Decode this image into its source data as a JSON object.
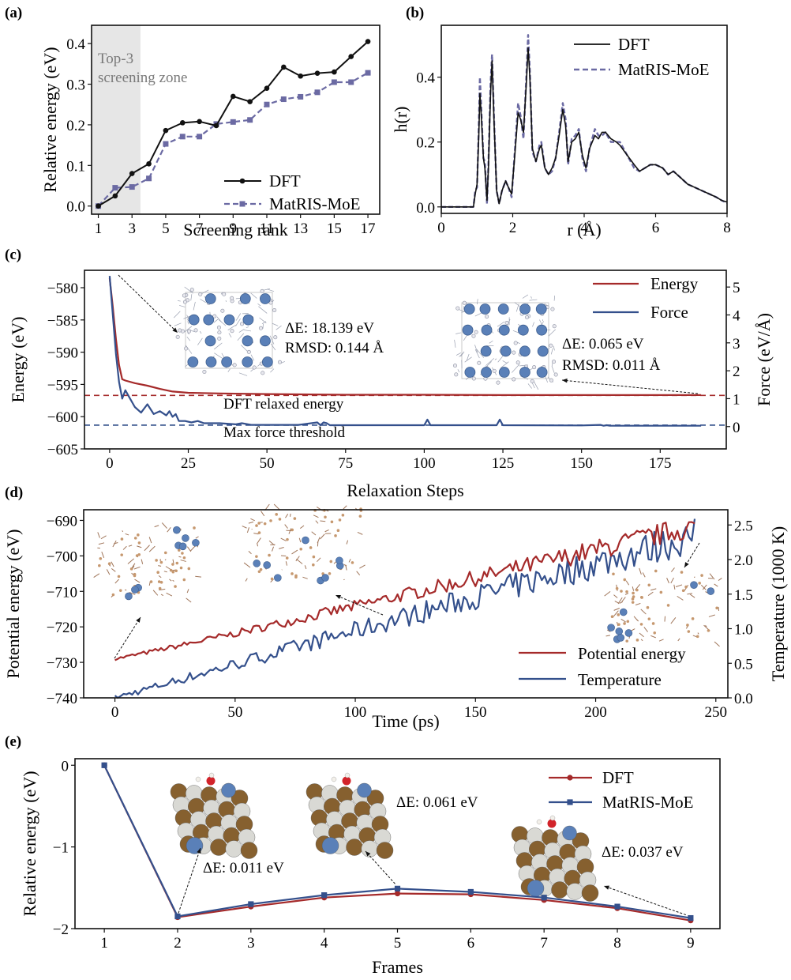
{
  "figure": {
    "panels": [
      "(a)",
      "(b)",
      "(c)",
      "(d)",
      "(e)"
    ]
  },
  "colors": {
    "dft_black": "#111111",
    "matris_purple": "#6b6aa3",
    "energy_red": "#a52a2a",
    "force_blue": "#34508c",
    "zone_gray": "#e6e6e6",
    "atom_blue": "#5a80b8",
    "atom_brown": "#86602f",
    "atom_white": "#d9d9d4",
    "atom_red": "#d2232a"
  },
  "chart_data": [
    {
      "id": "a",
      "type": "line",
      "label": "(a)",
      "title": "",
      "xlabel": "Screening rank",
      "ylabel": "Relative energy (eV)",
      "xlim": [
        0.6,
        17.7
      ],
      "ylim": [
        -0.02,
        0.445
      ],
      "xticks": [
        1,
        3,
        5,
        7,
        9,
        11,
        13,
        15,
        17
      ],
      "yticks": [
        0.0,
        0.1,
        0.2,
        0.3,
        0.4
      ],
      "ytick_labels": [
        "0.0",
        "0.1",
        "0.2",
        "0.3",
        "0.4"
      ],
      "grid": false,
      "legend_position": "lower-right",
      "shaded_region": {
        "x0": 0.6,
        "x1": 3.5,
        "label_lines": [
          "Top-3",
          "screening zone"
        ]
      },
      "x": [
        1,
        2,
        3,
        4,
        5,
        6,
        7,
        8,
        9,
        10,
        11,
        12,
        13,
        14,
        15,
        16,
        17
      ],
      "series": [
        {
          "name": "DFT",
          "style": "solid-circle",
          "values": [
            0.0,
            0.025,
            0.08,
            0.104,
            0.186,
            0.205,
            0.208,
            0.198,
            0.27,
            0.257,
            0.29,
            0.342,
            0.32,
            0.327,
            0.33,
            0.368,
            0.405
          ]
        },
        {
          "name": "MatRIS-MoE",
          "style": "dashed-square",
          "values": [
            0.0,
            0.045,
            0.047,
            0.068,
            0.153,
            0.171,
            0.171,
            0.202,
            0.207,
            0.212,
            0.25,
            0.263,
            0.269,
            0.28,
            0.305,
            0.305,
            0.328
          ]
        }
      ]
    },
    {
      "id": "b",
      "type": "line",
      "label": "(b)",
      "xlabel": "r (Å)",
      "ylabel": "h(r)",
      "xlim": [
        0,
        8
      ],
      "ylim": [
        -0.02,
        0.56
      ],
      "xticks": [
        0,
        2,
        4,
        6,
        8
      ],
      "yticks": [
        0.0,
        0.2,
        0.4
      ],
      "ytick_labels": [
        "0.0",
        "0.2",
        "0.4"
      ],
      "grid": false,
      "legend_position": "top-right",
      "x": [
        0,
        0.9,
        0.95,
        1.0,
        1.05,
        1.08,
        1.12,
        1.18,
        1.22,
        1.28,
        1.32,
        1.38,
        1.42,
        1.48,
        1.55,
        1.62,
        1.7,
        1.8,
        1.88,
        1.97,
        2.05,
        2.15,
        2.22,
        2.3,
        2.38,
        2.43,
        2.48,
        2.55,
        2.65,
        2.75,
        2.8,
        2.9,
        3.0,
        3.1,
        3.2,
        3.3,
        3.4,
        3.48,
        3.55,
        3.65,
        3.75,
        3.85,
        3.95,
        4.05,
        4.15,
        4.3,
        4.4,
        4.5,
        4.6,
        4.75,
        4.9,
        5.0,
        5.2,
        5.4,
        5.55,
        5.7,
        5.85,
        6.0,
        6.2,
        6.35,
        6.5,
        6.7,
        6.9,
        7.1,
        7.3,
        7.5,
        7.7,
        7.85,
        8.0
      ],
      "series": [
        {
          "name": "DFT",
          "style": "solid",
          "values": [
            0,
            0,
            0.04,
            0.07,
            0.22,
            0.35,
            0.28,
            0.15,
            0.12,
            0.02,
            0.12,
            0.35,
            0.45,
            0.25,
            0.05,
            0.01,
            0.05,
            0.08,
            0.06,
            0.04,
            0.15,
            0.29,
            0.27,
            0.23,
            0.38,
            0.49,
            0.4,
            0.18,
            0.14,
            0.18,
            0.19,
            0.12,
            0.1,
            0.12,
            0.15,
            0.22,
            0.3,
            0.25,
            0.14,
            0.2,
            0.21,
            0.23,
            0.16,
            0.12,
            0.18,
            0.22,
            0.21,
            0.23,
            0.23,
            0.21,
            0.2,
            0.19,
            0.16,
            0.13,
            0.11,
            0.12,
            0.13,
            0.13,
            0.12,
            0.1,
            0.11,
            0.09,
            0.07,
            0.06,
            0.05,
            0.04,
            0.03,
            0.02,
            0.015
          ]
        },
        {
          "name": "MatRIS-MoE",
          "style": "dashed",
          "values": [
            0,
            0,
            0.05,
            0.06,
            0.25,
            0.4,
            0.3,
            0.15,
            0.14,
            0.01,
            0.13,
            0.38,
            0.47,
            0.26,
            0.05,
            0.01,
            0.05,
            0.08,
            0.06,
            0.03,
            0.16,
            0.32,
            0.28,
            0.21,
            0.4,
            0.53,
            0.42,
            0.17,
            0.14,
            0.19,
            0.2,
            0.12,
            0.1,
            0.11,
            0.15,
            0.23,
            0.32,
            0.27,
            0.13,
            0.21,
            0.22,
            0.24,
            0.15,
            0.11,
            0.18,
            0.24,
            0.22,
            0.22,
            0.23,
            0.2,
            0.2,
            0.2,
            0.16,
            0.12,
            0.11,
            0.12,
            0.13,
            0.13,
            0.12,
            0.1,
            0.11,
            0.09,
            0.07,
            0.06,
            0.05,
            0.04,
            0.03,
            0.02,
            0.012
          ]
        }
      ]
    },
    {
      "id": "c",
      "type": "line",
      "label": "(c)",
      "xlabel": "Relaxation Steps",
      "ylabel": "Energy (eV)",
      "ylabel_right": "Force (eV/Å)",
      "xlim": [
        -8,
        196
      ],
      "ylim": [
        -605,
        -577.3
      ],
      "ylim_right": [
        -0.8,
        5.6
      ],
      "xticks": [
        0,
        25,
        50,
        75,
        100,
        125,
        150,
        175
      ],
      "yticks": [
        -580,
        -585,
        -590,
        -595,
        -600,
        -605
      ],
      "ytick_labels": [
        "−580",
        "−585",
        "−590",
        "−595",
        "−600",
        "−605"
      ],
      "yticks_right": [
        0,
        1,
        2,
        3,
        4,
        5
      ],
      "grid": false,
      "legend_position": "top-right",
      "reference_lines": [
        {
          "name": "DFT relaxed energy",
          "axis": "left",
          "value": -596.7
        },
        {
          "name": "Max force threshold",
          "axis": "right",
          "value": 0.05
        }
      ],
      "annotations": [
        {
          "text_lines": [
            "ΔE: 18.139 eV",
            "RMSD: 0.144 Å"
          ],
          "points_to_step": 0
        },
        {
          "text_lines": [
            "ΔE: 0.065 eV",
            "RMSD: 0.011 Å"
          ],
          "points_to_step": 188
        }
      ],
      "series": [
        {
          "name": "Energy",
          "axis": "left",
          "x": [
            0,
            1,
            2,
            3,
            4,
            5,
            8,
            12,
            16,
            20,
            25,
            35,
            50,
            75,
            100,
            125,
            150,
            175,
            188
          ],
          "values": [
            -578.5,
            -583,
            -588,
            -592,
            -594.2,
            -594.4,
            -594.8,
            -595.2,
            -595.7,
            -596.1,
            -596.3,
            -596.4,
            -596.5,
            -596.6,
            -596.6,
            -596.65,
            -596.65,
            -596.65,
            -596.65
          ]
        },
        {
          "name": "Force",
          "axis": "right",
          "x": [
            0,
            1,
            2,
            3,
            4,
            5,
            6,
            8,
            10,
            12,
            14,
            16,
            18,
            19,
            20,
            21,
            22,
            24,
            26,
            28,
            30,
            35,
            40,
            42,
            45,
            50,
            60,
            66,
            67,
            68,
            69,
            70,
            75,
            100,
            101,
            102,
            123,
            124,
            125,
            150,
            156,
            157,
            158,
            159,
            175,
            188
          ],
          "values": [
            5.4,
            4.0,
            2.6,
            1.6,
            1.0,
            1.3,
            1.1,
            0.7,
            0.5,
            0.8,
            0.45,
            0.55,
            0.4,
            0.55,
            0.35,
            0.45,
            0.2,
            0.2,
            0.15,
            0.2,
            0.12,
            0.12,
            0.08,
            0.12,
            0.06,
            0.06,
            0.06,
            0.15,
            0.05,
            0.15,
            0.12,
            0.05,
            0.05,
            0.05,
            0.25,
            0.05,
            0.05,
            0.25,
            0.05,
            0.04,
            0.06,
            0.03,
            0.05,
            0.03,
            0.03,
            0.03
          ]
        }
      ]
    },
    {
      "id": "d",
      "type": "line",
      "label": "(d)",
      "xlabel": "Time (ps)",
      "ylabel": "Potential energy (eV)",
      "ylabel_right": "Temperature (1000 K)",
      "xlim": [
        -13,
        255
      ],
      "ylim": [
        -740,
        -687
      ],
      "ylim_right": [
        0,
        2.72
      ],
      "xticks": [
        0,
        50,
        100,
        150,
        200,
        250
      ],
      "yticks": [
        -690,
        -700,
        -710,
        -720,
        -730,
        -740
      ],
      "ytick_labels": [
        "−690",
        "−700",
        "−710",
        "−720",
        "−730",
        "−740"
      ],
      "yticks_right": [
        0.0,
        0.5,
        1.0,
        1.5,
        2.0,
        2.5
      ],
      "ytick_right_labels": [
        "0.0",
        "0.5",
        "1.0",
        "1.5",
        "2.0",
        "2.5"
      ],
      "grid": false,
      "legend_position": "lower-right",
      "series": [
        {
          "name": "Potential energy",
          "axis": "left",
          "trend_start": -729,
          "trend_end": -691.5,
          "t_end": 242
        },
        {
          "name": "Temperature",
          "axis": "right",
          "trend_start": 0.0,
          "trend_end": 2.35,
          "t_end": 242
        }
      ]
    },
    {
      "id": "e",
      "type": "line",
      "label": "(e)",
      "xlabel": "Frames",
      "ylabel": "Relative energy (eV)",
      "xlim": [
        0.6,
        9.4
      ],
      "ylim": [
        -2.0,
        0.08
      ],
      "xticks": [
        1,
        2,
        3,
        4,
        5,
        6,
        7,
        8,
        9
      ],
      "yticks": [
        0,
        -1,
        -2
      ],
      "ytick_labels": [
        "0",
        "−1",
        "−2"
      ],
      "grid": false,
      "legend_position": "top-right",
      "x": [
        1,
        2,
        3,
        4,
        5,
        6,
        7,
        8,
        9
      ],
      "annotations": [
        {
          "text": "ΔE: 0.011 eV",
          "frame": 2
        },
        {
          "text": "ΔE: 0.061 eV",
          "frame": 5
        },
        {
          "text": "ΔE: 0.037 eV",
          "frame": 9
        }
      ],
      "series": [
        {
          "name": "DFT",
          "style": "solid-circle",
          "values": [
            0.0,
            -1.86,
            -1.73,
            -1.62,
            -1.57,
            -1.58,
            -1.65,
            -1.75,
            -1.9
          ]
        },
        {
          "name": "MatRIS-MoE",
          "style": "solid-square",
          "values": [
            0.0,
            -1.85,
            -1.7,
            -1.59,
            -1.51,
            -1.55,
            -1.62,
            -1.73,
            -1.87
          ]
        }
      ]
    }
  ]
}
